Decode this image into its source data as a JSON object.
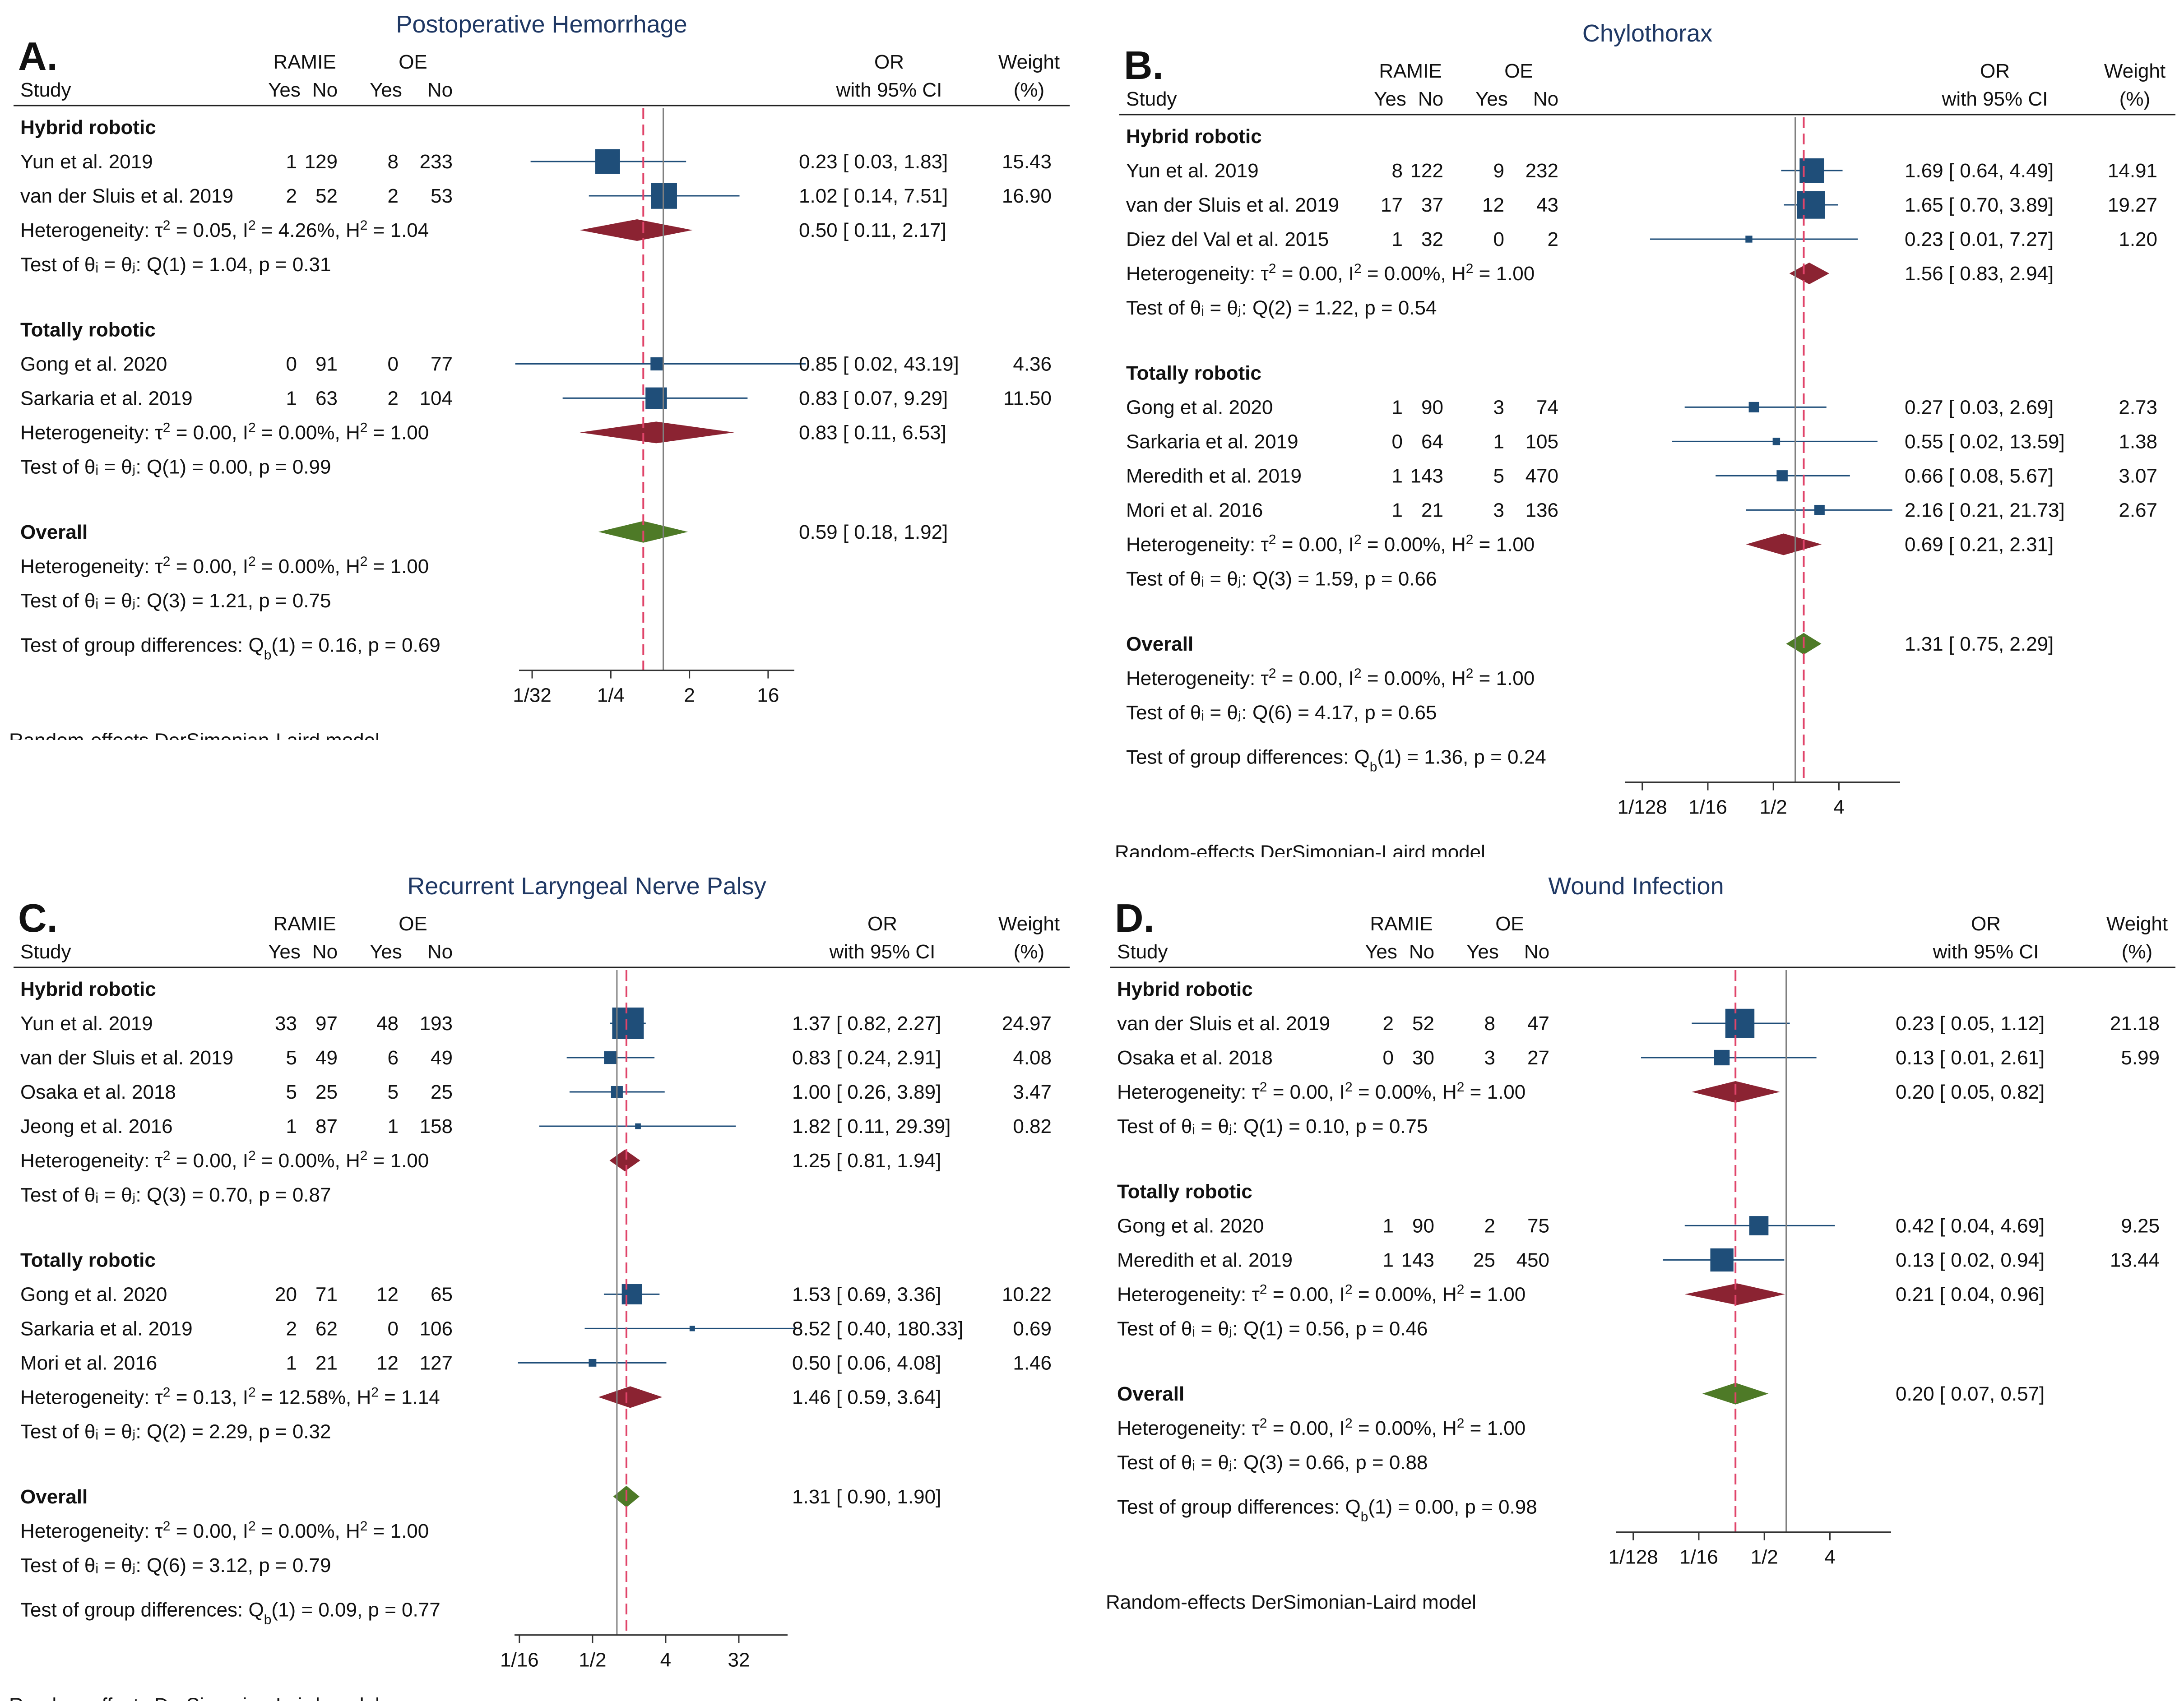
{
  "chart_data": [
    {
      "type": "forest",
      "panel_label": "A.",
      "title": "Postoperative Hemorrhage",
      "headers": {
        "group1": "RAMIE",
        "group2": "OE",
        "study": "Study",
        "yes": "Yes",
        "no": "No",
        "or": "OR",
        "ci": "with 95% CI",
        "weight": "Weight",
        "pct": "(%)"
      },
      "xticks": [
        "1/32",
        "1/4",
        "2",
        "16"
      ],
      "xrange_log2": [
        -5.5,
        5
      ],
      "line_of_no_effect": 1,
      "overall_or": 0.59,
      "rows": [
        {
          "kind": "group",
          "text": "Hybrid robotic"
        },
        {
          "kind": "study",
          "name": "Yun et al. 2019",
          "counts": [
            "1",
            "129",
            "8",
            "233"
          ],
          "or": 0.23,
          "lo": 0.03,
          "hi": 1.83,
          "est": "0.23 [  0.03,    1.83]",
          "weight": "15.43",
          "w": 15.43
        },
        {
          "kind": "study",
          "name": "van der Sluis et al. 2019",
          "counts": [
            "2",
            "52",
            "2",
            "53"
          ],
          "or": 1.02,
          "lo": 0.14,
          "hi": 7.51,
          "est": "1.02 [  0.14,    7.51]",
          "weight": "16.90",
          "w": 16.9
        },
        {
          "kind": "subtotal",
          "het": "Heterogeneity: τ² = 0.05, I² = 4.26%, H² = 1.04",
          "or": 0.5,
          "lo": 0.11,
          "hi": 2.17,
          "est": "0.50 [  0.11,    2.17]"
        },
        {
          "kind": "text",
          "text": "Test of θᵢ = θⱼ: Q(1) = 1.04, p = 0.31"
        },
        {
          "kind": "gap"
        },
        {
          "kind": "group",
          "text": "Totally robotic"
        },
        {
          "kind": "study",
          "name": "Gong et al. 2020",
          "counts": [
            "0",
            "91",
            "0",
            "77"
          ],
          "or": 0.85,
          "lo": 0.02,
          "hi": 43.19,
          "est": "0.85 [  0.02,  43.19]",
          "weight": "4.36",
          "w": 4.36
        },
        {
          "kind": "study",
          "name": "Sarkaria et al. 2019",
          "counts": [
            "1",
            "63",
            "2",
            "104"
          ],
          "or": 0.83,
          "lo": 0.07,
          "hi": 9.29,
          "est": "0.83 [  0.07,    9.29]",
          "weight": "11.50",
          "w": 11.5
        },
        {
          "kind": "subtotal",
          "het": "Heterogeneity: τ² = 0.00, I² = 0.00%, H² = 1.00",
          "or": 0.83,
          "lo": 0.11,
          "hi": 6.53,
          "est": "0.83 [  0.11,    6.53]"
        },
        {
          "kind": "text",
          "text": "Test of θᵢ = θⱼ: Q(1) = 0.00, p = 0.99"
        },
        {
          "kind": "gap"
        },
        {
          "kind": "overall",
          "text": "Overall",
          "or": 0.59,
          "lo": 0.18,
          "hi": 1.92,
          "est": "0.59 [  0.18,    1.92]"
        },
        {
          "kind": "text",
          "text": "Heterogeneity: τ² = 0.00, I² = 0.00%, H² = 1.00"
        },
        {
          "kind": "text",
          "text": "Test of θᵢ = θⱼ: Q(3) = 1.21, p = 0.75"
        },
        {
          "kind": "text",
          "text": "Test of group differences: Q_b(1) = 0.16, p = 0.69",
          "spaced": true
        }
      ],
      "footer": "Random-effects DerSimonian-Laird model"
    },
    {
      "type": "forest",
      "panel_label": "B.",
      "title": "Chylothorax",
      "headers": {
        "group1": "RAMIE",
        "group2": "OE",
        "study": "Study",
        "yes": "Yes",
        "no": "No",
        "or": "OR",
        "ci": "with 95% CI",
        "weight": "Weight",
        "pct": "(%)"
      },
      "xticks": [
        "1/128",
        "1/16",
        "1/2",
        "4"
      ],
      "xrange_log2": [
        -7.8,
        4.8
      ],
      "line_of_no_effect": 1,
      "overall_or": 1.31,
      "rows": [
        {
          "kind": "group",
          "text": "Hybrid robotic"
        },
        {
          "kind": "study",
          "name": "Yun et al. 2019",
          "counts": [
            "8",
            "122",
            "9",
            "232"
          ],
          "or": 1.69,
          "lo": 0.64,
          "hi": 4.49,
          "est": "1.69 [  0.64,    4.49]",
          "weight": "14.91",
          "w": 14.91
        },
        {
          "kind": "study",
          "name": "van der Sluis et al. 2019",
          "counts": [
            "17",
            "37",
            "12",
            "43"
          ],
          "or": 1.65,
          "lo": 0.7,
          "hi": 3.89,
          "est": "1.65 [  0.70,    3.89]",
          "weight": "19.27",
          "w": 19.27
        },
        {
          "kind": "study",
          "name": "Diez del Val et al. 2015",
          "counts": [
            "1",
            "32",
            "0",
            "2"
          ],
          "or": 0.23,
          "lo": 0.01,
          "hi": 7.27,
          "est": "0.23 [  0.01,    7.27]",
          "weight": "1.20",
          "w": 1.2
        },
        {
          "kind": "subtotal",
          "het": "Heterogeneity: τ² = 0.00, I² = 0.00%, H² = 1.00",
          "or": 1.56,
          "lo": 0.83,
          "hi": 2.94,
          "est": "1.56 [  0.83,    2.94]"
        },
        {
          "kind": "text",
          "text": "Test of θᵢ = θⱼ: Q(2) = 1.22, p = 0.54"
        },
        {
          "kind": "gap"
        },
        {
          "kind": "group",
          "text": "Totally robotic"
        },
        {
          "kind": "study",
          "name": "Gong et al. 2020",
          "counts": [
            "1",
            "90",
            "3",
            "74"
          ],
          "or": 0.27,
          "lo": 0.03,
          "hi": 2.69,
          "est": "0.27 [  0.03,    2.69]",
          "weight": "2.73",
          "w": 2.73
        },
        {
          "kind": "study",
          "name": "Sarkaria et al. 2019",
          "counts": [
            "0",
            "64",
            "1",
            "105"
          ],
          "or": 0.55,
          "lo": 0.02,
          "hi": 13.59,
          "est": "0.55 [  0.02,  13.59]",
          "weight": "1.38",
          "w": 1.38
        },
        {
          "kind": "study",
          "name": "Meredith et al. 2019",
          "counts": [
            "1",
            "143",
            "5",
            "470"
          ],
          "or": 0.66,
          "lo": 0.08,
          "hi": 5.67,
          "est": "0.66 [  0.08,    5.67]",
          "weight": "3.07",
          "w": 3.07
        },
        {
          "kind": "study",
          "name": "Mori et al. 2016",
          "counts": [
            "1",
            "21",
            "3",
            "136"
          ],
          "or": 2.16,
          "lo": 0.21,
          "hi": 21.73,
          "est": "2.16 [  0.21,  21.73]",
          "weight": "2.67",
          "w": 2.67
        },
        {
          "kind": "subtotal",
          "het": "Heterogeneity: τ² = 0.00, I² = 0.00%, H² = 1.00",
          "or": 0.69,
          "lo": 0.21,
          "hi": 2.31,
          "est": "0.69 [  0.21,    2.31]"
        },
        {
          "kind": "text",
          "text": "Test of θᵢ = θⱼ: Q(3) = 1.59, p = 0.66"
        },
        {
          "kind": "gap"
        },
        {
          "kind": "overall",
          "text": "Overall",
          "or": 1.31,
          "lo": 0.75,
          "hi": 2.29,
          "est": "1.31 [  0.75,    2.29]"
        },
        {
          "kind": "text",
          "text": "Heterogeneity: τ² = 0.00, I² = 0.00%, H² = 1.00"
        },
        {
          "kind": "text",
          "text": "Test of θᵢ = θⱼ: Q(6) = 4.17, p = 0.65"
        },
        {
          "kind": "text",
          "text": "Test of group differences: Q_b(1) = 1.36, p = 0.24",
          "spaced": true
        }
      ],
      "footer": "Random-effects DerSimonian-Laird model"
    },
    {
      "type": "forest",
      "panel_label": "C.",
      "title": "Recurrent Laryngeal Nerve Palsy",
      "headers": {
        "group1": "RAMIE",
        "group2": "OE",
        "study": "Study",
        "yes": "Yes",
        "no": "No",
        "or": "OR",
        "ci": "with 95% CI",
        "weight": "Weight",
        "pct": "(%)"
      },
      "xticks": [
        "1/16",
        "1/2",
        "4",
        "32"
      ],
      "xrange_log2": [
        -4.2,
        7
      ],
      "line_of_no_effect": 1,
      "overall_or": 1.31,
      "rows": [
        {
          "kind": "group",
          "text": "Hybrid robotic"
        },
        {
          "kind": "study",
          "name": "Yun et al. 2019",
          "counts": [
            "33",
            "97",
            "48",
            "193"
          ],
          "or": 1.37,
          "lo": 0.82,
          "hi": 2.27,
          "est": "1.37 [  0.82,      2.27]",
          "weight": "24.97",
          "w": 24.97
        },
        {
          "kind": "study",
          "name": "van der Sluis et al. 2019",
          "counts": [
            "5",
            "49",
            "6",
            "49"
          ],
          "or": 0.83,
          "lo": 0.24,
          "hi": 2.91,
          "est": "0.83 [  0.24,      2.91]",
          "weight": "4.08",
          "w": 4.08
        },
        {
          "kind": "study",
          "name": "Osaka et al. 2018",
          "counts": [
            "5",
            "25",
            "5",
            "25"
          ],
          "or": 1.0,
          "lo": 0.26,
          "hi": 3.89,
          "est": "1.00 [  0.26,      3.89]",
          "weight": "3.47",
          "w": 3.47
        },
        {
          "kind": "study",
          "name": "Jeong et al. 2016",
          "counts": [
            "1",
            "87",
            "1",
            "158"
          ],
          "or": 1.82,
          "lo": 0.11,
          "hi": 29.39,
          "est": "1.82 [  0.11,    29.39]",
          "weight": "0.82",
          "w": 0.82
        },
        {
          "kind": "subtotal",
          "het": "Heterogeneity: τ² = 0.00, I² = 0.00%, H² = 1.00",
          "or": 1.25,
          "lo": 0.81,
          "hi": 1.94,
          "est": "1.25 [  0.81,      1.94]"
        },
        {
          "kind": "text",
          "text": "Test of θᵢ = θⱼ: Q(3) = 0.70, p = 0.87"
        },
        {
          "kind": "gap"
        },
        {
          "kind": "group",
          "text": "Totally robotic"
        },
        {
          "kind": "study",
          "name": "Gong et al. 2020",
          "counts": [
            "20",
            "71",
            "12",
            "65"
          ],
          "or": 1.53,
          "lo": 0.69,
          "hi": 3.36,
          "est": "1.53 [  0.69,      3.36]",
          "weight": "10.22",
          "w": 10.22
        },
        {
          "kind": "study",
          "name": "Sarkaria et al. 2019",
          "counts": [
            "2",
            "62",
            "0",
            "106"
          ],
          "or": 8.52,
          "lo": 0.4,
          "hi": 180.33,
          "est": "8.52 [  0.40,  180.33]",
          "weight": "0.69",
          "w": 0.69
        },
        {
          "kind": "study",
          "name": "Mori et al. 2016",
          "counts": [
            "1",
            "21",
            "12",
            "127"
          ],
          "or": 0.5,
          "lo": 0.06,
          "hi": 4.08,
          "est": "0.50 [  0.06,      4.08]",
          "weight": "1.46",
          "w": 1.46
        },
        {
          "kind": "subtotal",
          "het": "Heterogeneity: τ² = 0.13, I² = 12.58%, H² = 1.14",
          "or": 1.46,
          "lo": 0.59,
          "hi": 3.64,
          "est": "1.46 [  0.59,      3.64]"
        },
        {
          "kind": "text",
          "text": "Test of θᵢ = θⱼ: Q(2) = 2.29, p = 0.32"
        },
        {
          "kind": "gap"
        },
        {
          "kind": "overall",
          "text": "Overall",
          "or": 1.31,
          "lo": 0.9,
          "hi": 1.9,
          "est": "1.31 [  0.90,      1.90]"
        },
        {
          "kind": "text",
          "text": "Heterogeneity: τ² = 0.00, I² = 0.00%, H² = 1.00"
        },
        {
          "kind": "text",
          "text": "Test of θᵢ = θⱼ: Q(6) = 3.12, p = 0.79"
        },
        {
          "kind": "text",
          "text": "Test of group differences: Q_b(1) = 0.09, p = 0.77",
          "spaced": true
        }
      ],
      "footer": "Random-effects DerSimonian-Laird model"
    },
    {
      "type": "forest",
      "panel_label": "D.",
      "title": "Wound Infection",
      "headers": {
        "group1": "RAMIE",
        "group2": "OE",
        "study": "Study",
        "yes": "Yes",
        "no": "No",
        "or": "OR",
        "ci": "with 95% CI",
        "weight": "Weight",
        "pct": "(%)"
      },
      "xticks": [
        "1/128",
        "1/16",
        "1/2",
        "4"
      ],
      "xrange_log2": [
        -7.8,
        4.8
      ],
      "line_of_no_effect": 1,
      "overall_or": 0.2,
      "rows": [
        {
          "kind": "group",
          "text": "Hybrid robotic"
        },
        {
          "kind": "study",
          "name": "van der Sluis et al. 2019",
          "counts": [
            "2",
            "52",
            "8",
            "47"
          ],
          "or": 0.23,
          "lo": 0.05,
          "hi": 1.12,
          "est": "0.23 [ 0.05, 1.12]",
          "weight": "21.18",
          "w": 21.18
        },
        {
          "kind": "study",
          "name": "Osaka et al. 2018",
          "counts": [
            "0",
            "30",
            "3",
            "27"
          ],
          "or": 0.13,
          "lo": 0.01,
          "hi": 2.61,
          "est": "0.13 [ 0.01, 2.61]",
          "weight": "5.99",
          "w": 5.99
        },
        {
          "kind": "subtotal",
          "het": "Heterogeneity: τ² = 0.00, I² = 0.00%, H² = 1.00",
          "or": 0.2,
          "lo": 0.05,
          "hi": 0.82,
          "est": "0.20 [ 0.05, 0.82]"
        },
        {
          "kind": "text",
          "text": "Test of θᵢ = θⱼ: Q(1) = 0.10, p = 0.75"
        },
        {
          "kind": "gap"
        },
        {
          "kind": "group",
          "text": "Totally robotic"
        },
        {
          "kind": "study",
          "name": "Gong et al. 2020",
          "counts": [
            "1",
            "90",
            "2",
            "75"
          ],
          "or": 0.42,
          "lo": 0.04,
          "hi": 4.69,
          "est": "0.42 [ 0.04, 4.69]",
          "weight": "9.25",
          "w": 9.25
        },
        {
          "kind": "study",
          "name": "Meredith et al. 2019",
          "counts": [
            "1",
            "143",
            "25",
            "450"
          ],
          "or": 0.13,
          "lo": 0.02,
          "hi": 0.94,
          "est": "0.13 [ 0.02, 0.94]",
          "weight": "13.44",
          "w": 13.44
        },
        {
          "kind": "subtotal",
          "het": "Heterogeneity: τ² = 0.00, I² = 0.00%, H² = 1.00",
          "or": 0.21,
          "lo": 0.04,
          "hi": 0.96,
          "est": "0.21 [ 0.04, 0.96]"
        },
        {
          "kind": "text",
          "text": "Test of θᵢ = θⱼ: Q(1) = 0.56, p = 0.46"
        },
        {
          "kind": "gap"
        },
        {
          "kind": "overall",
          "text": "Overall",
          "or": 0.2,
          "lo": 0.07,
          "hi": 0.57,
          "est": "0.20 [ 0.07, 0.57]"
        },
        {
          "kind": "text",
          "text": "Heterogeneity: τ² = 0.00, I² = 0.00%, H² = 1.00"
        },
        {
          "kind": "text",
          "text": "Test of θᵢ = θⱼ: Q(3) = 0.66, p = 0.88"
        },
        {
          "kind": "text",
          "text": "Test of group differences: Q_b(1) = 0.00, p = 0.98",
          "spaced": true
        }
      ],
      "footer": "Random-effects DerSimonian-Laird model"
    }
  ],
  "colors": {
    "title": "#1f3864",
    "square": "#1f4e79",
    "ci_line": "#1f4e79",
    "subtotal_diamond": "#8b2332",
    "overall_diamond": "#4e7a27",
    "null_line": "#808080",
    "overall_line": "#e0446a",
    "text": "#111111"
  }
}
